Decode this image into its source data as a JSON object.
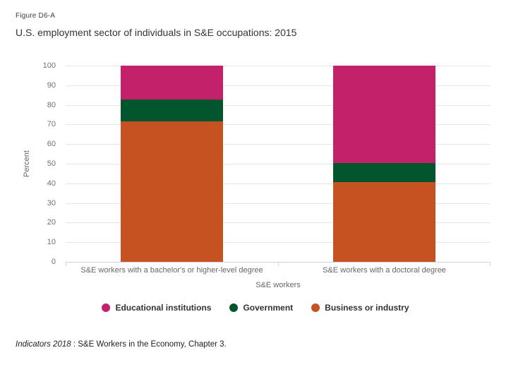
{
  "figure_label": "Figure D6-A",
  "title": "U.S. employment sector of individuals in S&E occupations: 2015",
  "source_note": {
    "italic_text": "Indicators 2018 ",
    "text": ": S&E Workers in the Economy, Chapter 3."
  },
  "chart_data": {
    "type": "bar",
    "stacked": true,
    "title": "U.S. employment sector of individuals in S&E occupations: 2015",
    "categories": [
      "S&E workers with a bachelor's or higher-level degree",
      "S&E workers with a doctoral degree"
    ],
    "series": [
      {
        "name": "Educational institutions",
        "color": "#C32169",
        "values": [
          17.2,
          49.7
        ]
      },
      {
        "name": "Government",
        "color": "#02552C",
        "values": [
          11.1,
          9.8
        ]
      },
      {
        "name": "Business or industry",
        "color": "#C65221",
        "values": [
          71.7,
          40.5
        ]
      }
    ],
    "xlabel": "S&E workers",
    "ylabel": "Percent",
    "ylim": [
      0,
      100
    ],
    "yticks": [
      0,
      10,
      20,
      30,
      40,
      50,
      60,
      70,
      80,
      90,
      100
    ],
    "grid": true,
    "legend_position": "bottom",
    "axis_line_color": "#ccd6eb",
    "gridline_color": "#e6e6e6"
  }
}
